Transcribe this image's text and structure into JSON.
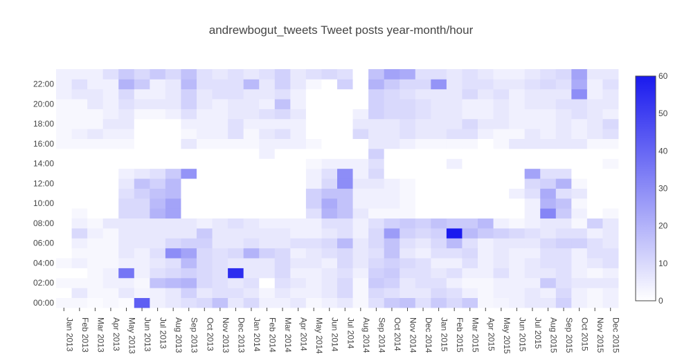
{
  "chart_data": {
    "type": "heatmap",
    "title": "andrewbogut_tweets Tweet posts year-month/hour",
    "xlabel": "",
    "ylabel": "",
    "x": [
      "Jan 2013",
      "Feb 2013",
      "Mar 2013",
      "Apr 2013",
      "May 2013",
      "Jun 2013",
      "Jul 2013",
      "Aug 2013",
      "Sep 2013",
      "Oct 2013",
      "Nov 2013",
      "Dec 2013",
      "Jan 2014",
      "Feb 2014",
      "Mar 2014",
      "Apr 2014",
      "May 2014",
      "Jun 2014",
      "Jul 2014",
      "Aug 2014",
      "Sep 2014",
      "Oct 2014",
      "Nov 2014",
      "Dec 2014",
      "Jan 2015",
      "Feb 2015",
      "Mar 2015",
      "Apr 2015",
      "May 2015",
      "Jun 2015",
      "Jul 2015",
      "Aug 2015",
      "Sep 2015",
      "Oct 2015",
      "Nov 2015",
      "Dec 2015"
    ],
    "y_tick_labels": [
      "00:00",
      "02:00",
      "04:00",
      "06:00",
      "08:00",
      "10:00",
      "12:00",
      "14:00",
      "16:00",
      "18:00",
      "20:00",
      "22:00"
    ],
    "colorbar": {
      "min": 0,
      "max": 60,
      "tick_labels": [
        "0",
        "10",
        "20",
        "30",
        "40",
        "50",
        "60"
      ]
    },
    "colorscale": {
      "low": "#ffffff",
      "high": "#1a1aee"
    },
    "values": [
      [
        2,
        2,
        1,
        2,
        1,
        42,
        4,
        6,
        8,
        10,
        16,
        6,
        10,
        4,
        4,
        6,
        2,
        4,
        6,
        2,
        8,
        14,
        16,
        8,
        14,
        10,
        14,
        2,
        3,
        4,
        6,
        6,
        12,
        4,
        2,
        4
      ],
      [
        0,
        6,
        2,
        2,
        6,
        3,
        4,
        6,
        12,
        6,
        8,
        8,
        6,
        3,
        6,
        4,
        4,
        6,
        10,
        2,
        10,
        8,
        6,
        6,
        10,
        8,
        4,
        2,
        4,
        4,
        6,
        4,
        10,
        4,
        2,
        4
      ],
      [
        2,
        2,
        2,
        4,
        4,
        2,
        16,
        18,
        20,
        10,
        8,
        6,
        8,
        0,
        8,
        6,
        4,
        6,
        10,
        2,
        14,
        12,
        6,
        8,
        8,
        4,
        2,
        2,
        4,
        4,
        4,
        14,
        8,
        6,
        6,
        6
      ],
      [
        0,
        0,
        2,
        4,
        36,
        4,
        8,
        10,
        12,
        10,
        8,
        55,
        6,
        6,
        10,
        4,
        4,
        6,
        8,
        4,
        12,
        14,
        8,
        8,
        6,
        8,
        4,
        4,
        8,
        4,
        6,
        6,
        8,
        4,
        2,
        4
      ],
      [
        2,
        4,
        2,
        2,
        4,
        4,
        6,
        8,
        18,
        10,
        8,
        6,
        6,
        6,
        10,
        6,
        6,
        4,
        10,
        6,
        10,
        12,
        10,
        8,
        4,
        4,
        8,
        4,
        6,
        4,
        6,
        8,
        8,
        4,
        6,
        8
      ],
      [
        0,
        2,
        2,
        2,
        6,
        4,
        8,
        30,
        24,
        10,
        8,
        10,
        20,
        12,
        10,
        4,
        6,
        8,
        10,
        6,
        8,
        16,
        6,
        4,
        8,
        8,
        10,
        4,
        6,
        4,
        4,
        8,
        8,
        4,
        8,
        8
      ],
      [
        0,
        4,
        2,
        2,
        6,
        6,
        6,
        10,
        12,
        12,
        6,
        6,
        8,
        6,
        6,
        8,
        8,
        10,
        18,
        6,
        10,
        16,
        8,
        6,
        10,
        18,
        8,
        4,
        6,
        6,
        6,
        10,
        12,
        12,
        8,
        6
      ],
      [
        0,
        10,
        4,
        2,
        6,
        6,
        6,
        6,
        6,
        14,
        6,
        6,
        6,
        6,
        6,
        4,
        4,
        6,
        8,
        4,
        10,
        26,
        12,
        10,
        12,
        60,
        18,
        14,
        12,
        10,
        8,
        6,
        8,
        8,
        4,
        6
      ],
      [
        0,
        4,
        2,
        6,
        6,
        6,
        6,
        6,
        6,
        4,
        6,
        8,
        6,
        4,
        4,
        4,
        4,
        8,
        8,
        4,
        8,
        12,
        14,
        12,
        16,
        14,
        14,
        18,
        4,
        2,
        4,
        6,
        6,
        2,
        12,
        6
      ],
      [
        0,
        2,
        0,
        0,
        10,
        10,
        20,
        24,
        0,
        0,
        0,
        0,
        0,
        0,
        0,
        0,
        8,
        20,
        16,
        6,
        2,
        2,
        2,
        0,
        0,
        0,
        0,
        0,
        0,
        0,
        4,
        32,
        14,
        4,
        0,
        2
      ],
      [
        0,
        0,
        0,
        0,
        10,
        10,
        18,
        24,
        0,
        0,
        0,
        0,
        0,
        0,
        0,
        0,
        12,
        22,
        16,
        4,
        4,
        4,
        2,
        0,
        0,
        0,
        0,
        0,
        0,
        0,
        4,
        20,
        16,
        2,
        0,
        0
      ],
      [
        0,
        0,
        0,
        0,
        8,
        12,
        16,
        18,
        0,
        0,
        0,
        0,
        0,
        0,
        0,
        0,
        12,
        16,
        16,
        4,
        4,
        4,
        2,
        0,
        0,
        0,
        0,
        0,
        0,
        4,
        8,
        22,
        8,
        6,
        0,
        0
      ],
      [
        0,
        0,
        0,
        0,
        6,
        16,
        12,
        18,
        0,
        0,
        0,
        0,
        0,
        0,
        0,
        0,
        4,
        10,
        30,
        6,
        6,
        4,
        2,
        0,
        0,
        0,
        0,
        0,
        0,
        0,
        10,
        12,
        20,
        2,
        0,
        0
      ],
      [
        0,
        0,
        0,
        0,
        4,
        6,
        8,
        14,
        28,
        0,
        0,
        0,
        0,
        0,
        0,
        0,
        4,
        8,
        30,
        4,
        10,
        0,
        0,
        0,
        0,
        0,
        0,
        0,
        0,
        0,
        24,
        8,
        8,
        0,
        0,
        0
      ],
      [
        0,
        0,
        0,
        0,
        0,
        0,
        0,
        0,
        0,
        0,
        0,
        0,
        0,
        0,
        0,
        0,
        2,
        4,
        4,
        4,
        8,
        0,
        0,
        0,
        0,
        4,
        0,
        0,
        0,
        0,
        0,
        0,
        0,
        0,
        0,
        2
      ],
      [
        0,
        0,
        0,
        0,
        0,
        0,
        0,
        0,
        0,
        0,
        0,
        0,
        0,
        4,
        0,
        0,
        0,
        0,
        0,
        0,
        12,
        0,
        0,
        0,
        0,
        0,
        0,
        0,
        0,
        0,
        0,
        0,
        0,
        0,
        0,
        0
      ],
      [
        2,
        2,
        2,
        2,
        2,
        0,
        0,
        0,
        6,
        2,
        2,
        2,
        2,
        4,
        4,
        4,
        2,
        0,
        0,
        0,
        6,
        6,
        4,
        2,
        2,
        2,
        2,
        0,
        2,
        6,
        6,
        6,
        6,
        6,
        2,
        2
      ],
      [
        2,
        4,
        6,
        4,
        4,
        0,
        0,
        0,
        2,
        4,
        4,
        8,
        2,
        6,
        8,
        4,
        0,
        0,
        0,
        10,
        6,
        6,
        8,
        6,
        6,
        8,
        8,
        4,
        2,
        2,
        6,
        4,
        6,
        4,
        6,
        8
      ],
      [
        2,
        2,
        2,
        6,
        6,
        0,
        0,
        0,
        4,
        4,
        4,
        8,
        4,
        4,
        4,
        4,
        0,
        0,
        0,
        6,
        6,
        6,
        8,
        6,
        6,
        6,
        10,
        6,
        6,
        4,
        4,
        4,
        6,
        4,
        6,
        10
      ],
      [
        2,
        2,
        2,
        4,
        6,
        2,
        2,
        4,
        8,
        4,
        4,
        6,
        6,
        8,
        10,
        6,
        0,
        0,
        0,
        4,
        12,
        10,
        10,
        8,
        6,
        6,
        4,
        4,
        6,
        4,
        4,
        4,
        6,
        8,
        6,
        4
      ],
      [
        2,
        2,
        6,
        4,
        8,
        6,
        6,
        6,
        12,
        6,
        4,
        6,
        6,
        4,
        16,
        4,
        0,
        0,
        0,
        0,
        12,
        10,
        10,
        8,
        6,
        6,
        4,
        4,
        6,
        4,
        6,
        6,
        8,
        8,
        6,
        6
      ],
      [
        4,
        6,
        6,
        4,
        10,
        4,
        4,
        6,
        12,
        6,
        8,
        8,
        6,
        6,
        8,
        4,
        0,
        0,
        0,
        0,
        12,
        10,
        8,
        6,
        6,
        6,
        10,
        6,
        8,
        4,
        6,
        6,
        6,
        30,
        4,
        6
      ],
      [
        4,
        8,
        4,
        4,
        20,
        14,
        4,
        6,
        18,
        8,
        8,
        8,
        18,
        6,
        12,
        6,
        2,
        0,
        12,
        0,
        20,
        14,
        10,
        10,
        28,
        6,
        8,
        8,
        6,
        6,
        8,
        10,
        8,
        22,
        4,
        8
      ],
      [
        4,
        4,
        4,
        8,
        14,
        10,
        14,
        10,
        16,
        8,
        6,
        8,
        6,
        8,
        12,
        6,
        8,
        10,
        8,
        0,
        16,
        24,
        22,
        8,
        8,
        6,
        8,
        6,
        4,
        4,
        6,
        8,
        10,
        24,
        6,
        6
      ]
    ]
  }
}
